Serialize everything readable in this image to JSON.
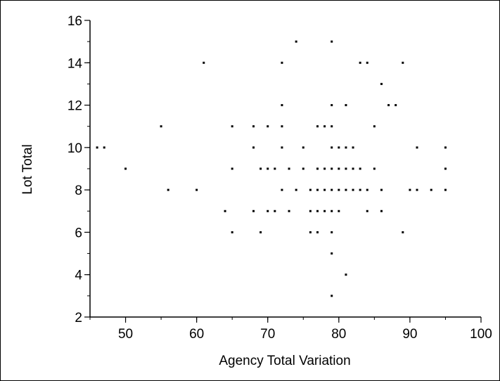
{
  "chart_data": {
    "type": "scatter",
    "title": "",
    "xlabel": "Agency Total Variation",
    "ylabel": "Lot Total",
    "xlim": [
      45,
      100
    ],
    "ylim": [
      2,
      16
    ],
    "x_ticks": [
      50,
      60,
      70,
      80,
      90,
      100
    ],
    "y_ticks": [
      2,
      4,
      6,
      8,
      10,
      12,
      14,
      16
    ],
    "x_minor_step": 5,
    "y_minor_step": 1,
    "grid": false,
    "legend": "none",
    "marker_color": "#000000",
    "points": [
      [
        46,
        10
      ],
      [
        47,
        10
      ],
      [
        50,
        9
      ],
      [
        55,
        11
      ],
      [
        56,
        8
      ],
      [
        60,
        8
      ],
      [
        61,
        14
      ],
      [
        64,
        7
      ],
      [
        65,
        11
      ],
      [
        65,
        9
      ],
      [
        65,
        6
      ],
      [
        68,
        11
      ],
      [
        68,
        10
      ],
      [
        68,
        7
      ],
      [
        69,
        9
      ],
      [
        69,
        6
      ],
      [
        70,
        11
      ],
      [
        70,
        9
      ],
      [
        70,
        7
      ],
      [
        71,
        9
      ],
      [
        71,
        7
      ],
      [
        72,
        14
      ],
      [
        72,
        12
      ],
      [
        72,
        11
      ],
      [
        72,
        10
      ],
      [
        72,
        8
      ],
      [
        73,
        9
      ],
      [
        73,
        7
      ],
      [
        74,
        15
      ],
      [
        74,
        8
      ],
      [
        75,
        10
      ],
      [
        75,
        9
      ],
      [
        76,
        8
      ],
      [
        76,
        7
      ],
      [
        76,
        6
      ],
      [
        77,
        11
      ],
      [
        77,
        9
      ],
      [
        77,
        8
      ],
      [
        77,
        7
      ],
      [
        77,
        6
      ],
      [
        78,
        11
      ],
      [
        78,
        9
      ],
      [
        78,
        8
      ],
      [
        78,
        7
      ],
      [
        79,
        15
      ],
      [
        79,
        12
      ],
      [
        79,
        11
      ],
      [
        79,
        10
      ],
      [
        79,
        9
      ],
      [
        79,
        8
      ],
      [
        79,
        7
      ],
      [
        79,
        6
      ],
      [
        79,
        5
      ],
      [
        79,
        3
      ],
      [
        80,
        10
      ],
      [
        80,
        9
      ],
      [
        80,
        8
      ],
      [
        80,
        7
      ],
      [
        81,
        12
      ],
      [
        81,
        10
      ],
      [
        81,
        9
      ],
      [
        81,
        8
      ],
      [
        81,
        4
      ],
      [
        82,
        10
      ],
      [
        82,
        9
      ],
      [
        82,
        8
      ],
      [
        83,
        14
      ],
      [
        83,
        9
      ],
      [
        83,
        8
      ],
      [
        84,
        14
      ],
      [
        84,
        8
      ],
      [
        84,
        7
      ],
      [
        85,
        11
      ],
      [
        85,
        9
      ],
      [
        86,
        13
      ],
      [
        86,
        8
      ],
      [
        86,
        7
      ],
      [
        87,
        12
      ],
      [
        88,
        12
      ],
      [
        89,
        14
      ],
      [
        89,
        6
      ],
      [
        90,
        8
      ],
      [
        91,
        10
      ],
      [
        91,
        8
      ],
      [
        93,
        8
      ],
      [
        95,
        10
      ],
      [
        95,
        9
      ],
      [
        95,
        8
      ]
    ]
  }
}
